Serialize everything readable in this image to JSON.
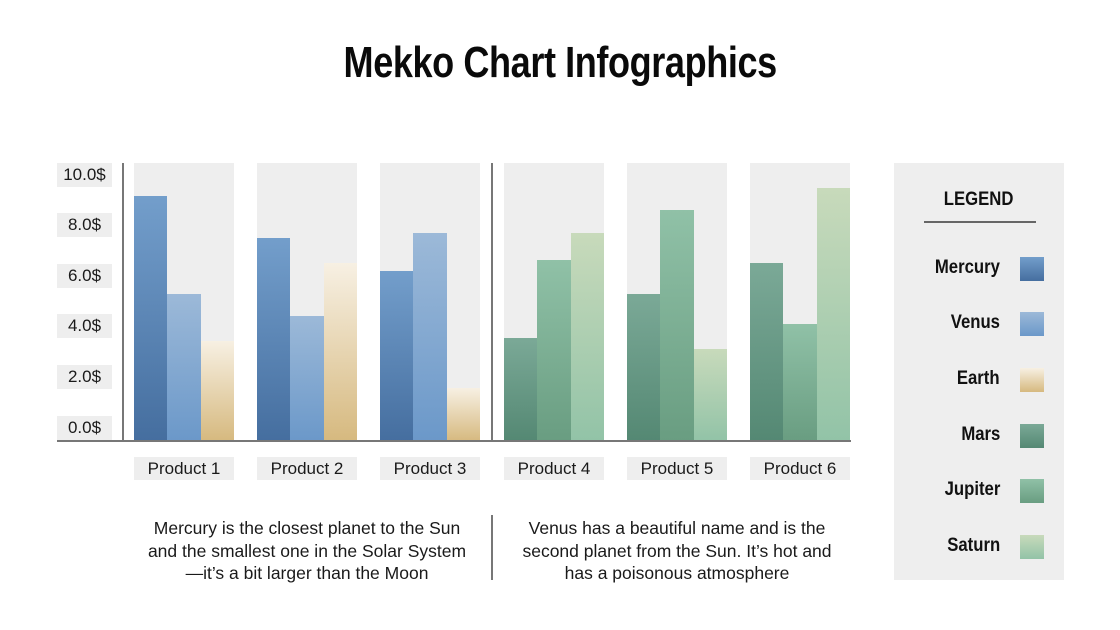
{
  "title": "Mekko Chart Infographics",
  "chart_data": {
    "type": "bar",
    "title": "Mekko Chart Infographics",
    "xlabel": "",
    "ylabel": "",
    "ylim": [
      0,
      10
    ],
    "y_ticks": [
      "0.0$",
      "2.0$",
      "4.0$",
      "6.0$",
      "8.0$",
      "10.0$"
    ],
    "grid": false,
    "legend_position": "right",
    "categories": [
      "Product 1",
      "Product 2",
      "Product 3",
      "Product 4",
      "Product 5",
      "Product 6"
    ],
    "groups": [
      {
        "categories": [
          "Product 1",
          "Product 2",
          "Product 3"
        ],
        "series": [
          {
            "name": "Mercury",
            "values": [
              8.8,
              7.3,
              6.1
            ]
          },
          {
            "name": "Venus",
            "values": [
              5.3,
              4.5,
              7.5
            ]
          },
          {
            "name": "Earth",
            "values": [
              3.6,
              6.4,
              1.9
            ]
          }
        ]
      },
      {
        "categories": [
          "Product 4",
          "Product 5",
          "Product 6"
        ],
        "series": [
          {
            "name": "Mars",
            "values": [
              3.7,
              5.3,
              6.4
            ]
          },
          {
            "name": "Jupiter",
            "values": [
              6.5,
              8.3,
              4.2
            ]
          },
          {
            "name": "Saturn",
            "values": [
              7.5,
              3.3,
              9.1
            ]
          }
        ]
      }
    ],
    "series": [
      {
        "name": "Mercury",
        "values": [
          8.8,
          7.3,
          6.1,
          null,
          null,
          null
        ]
      },
      {
        "name": "Venus",
        "values": [
          5.3,
          4.5,
          7.5,
          null,
          null,
          null
        ]
      },
      {
        "name": "Earth",
        "values": [
          3.6,
          6.4,
          1.9,
          null,
          null,
          null
        ]
      },
      {
        "name": "Mars",
        "values": [
          null,
          null,
          null,
          3.7,
          5.3,
          6.4
        ]
      },
      {
        "name": "Jupiter",
        "values": [
          null,
          null,
          null,
          6.5,
          8.3,
          4.2
        ]
      },
      {
        "name": "Saturn",
        "values": [
          null,
          null,
          null,
          7.5,
          3.3,
          9.1
        ]
      }
    ],
    "colors": {
      "Mercury": "#5a84b5",
      "Venus": "#84a8d0",
      "Earth": "#e6d3ac",
      "Mars": "#679884",
      "Jupiter": "#7cae93",
      "Saturn": "#add0b1"
    }
  },
  "y_axis": {
    "ticks": [
      "10.0$",
      "8.0$",
      "6.0$",
      "4.0$",
      "2.0$",
      "0.0$"
    ]
  },
  "x_axis": {
    "labels": [
      "Product 1",
      "Product 2",
      "Product 3",
      "Product 4",
      "Product 5",
      "Product 6"
    ]
  },
  "descriptions": {
    "left": "Mercury is the closest planet to the Sun and the smallest one in the Solar System—it’s a bit larger than the Moon",
    "right": "Venus has a beautiful name and is the second planet from the Sun. It’s hot and has a poisonous atmosphere"
  },
  "legend": {
    "title": "LEGEND",
    "items": [
      {
        "label": "Mercury"
      },
      {
        "label": "Venus"
      },
      {
        "label": "Earth"
      },
      {
        "label": "Mars"
      },
      {
        "label": "Jupiter"
      },
      {
        "label": "Saturn"
      }
    ]
  }
}
